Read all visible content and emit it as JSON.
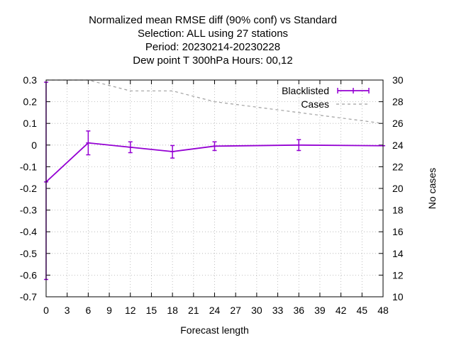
{
  "chart_data": {
    "type": "line",
    "title_lines": [
      "Normalized mean RMSE diff (90% conf) vs Standard",
      "Selection: ALL using    27 stations",
      "Period: 20230214-20230228",
      "Dew point T 300hPa   Hours:  00,12"
    ],
    "xlabel": "Forecast length",
    "ylabel": "",
    "y2label": "No cases",
    "xlim": [
      0,
      48
    ],
    "ylim": [
      -0.7,
      0.3
    ],
    "y2lim": [
      10,
      30
    ],
    "x_ticks": [
      0,
      3,
      6,
      9,
      12,
      15,
      18,
      21,
      24,
      27,
      30,
      33,
      36,
      39,
      42,
      45,
      48
    ],
    "y_ticks": [
      -0.7,
      -0.6,
      -0.5,
      -0.4,
      -0.3,
      -0.2,
      -0.1,
      0,
      0.1,
      0.2,
      0.3
    ],
    "y_tick_labels": [
      "-0.7",
      "-0.6",
      "-0.5",
      "-0.4",
      "-0.3",
      "-0.2",
      "-0.1",
      "0",
      "0.1",
      "0.2",
      "0.3"
    ],
    "y2_ticks": [
      10,
      12,
      14,
      16,
      18,
      20,
      22,
      24,
      26,
      28,
      30
    ],
    "grid": true,
    "legend_position": "top-right",
    "series": [
      {
        "name": "Blacklisted",
        "axis": "y1",
        "style": "line-errorbars",
        "color": "#9400d3",
        "x": [
          0,
          6,
          12,
          18,
          24,
          36,
          48
        ],
        "values": [
          -0.17,
          0.01,
          -0.01,
          -0.03,
          -0.005,
          0.0,
          -0.003
        ],
        "err_low": [
          -0.62,
          -0.045,
          -0.035,
          -0.06,
          -0.025,
          -0.025,
          -0.003
        ],
        "err_high": [
          0.29,
          0.065,
          0.015,
          -0.002,
          0.015,
          0.025,
          -0.003
        ]
      },
      {
        "name": "Cases",
        "axis": "y2",
        "style": "dashed",
        "color": "#a0a0a0",
        "x": [
          0,
          6,
          12,
          18,
          24,
          36,
          48
        ],
        "values": [
          30,
          30,
          29,
          29,
          28,
          27,
          26
        ]
      }
    ]
  }
}
